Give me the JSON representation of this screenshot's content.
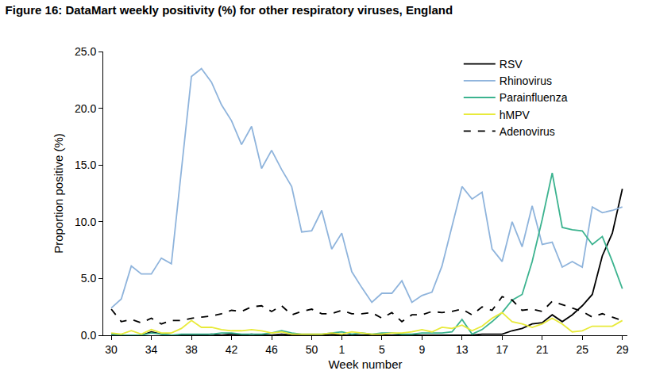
{
  "chart_data": {
    "type": "line",
    "title": "Figure 16: DataMart weekly positivity (%) for other respiratory viruses, England",
    "x_label": "Week number",
    "y_label": "Proportion positive (%)",
    "categories": [
      "30",
      null,
      null,
      null,
      "34",
      null,
      null,
      null,
      "38",
      null,
      null,
      null,
      "42",
      null,
      null,
      null,
      "46",
      null,
      null,
      null,
      "50",
      null,
      null,
      "1",
      null,
      null,
      null,
      "5",
      null,
      null,
      null,
      "9",
      null,
      null,
      null,
      "13",
      null,
      null,
      null,
      "17",
      null,
      null,
      null,
      "21",
      null,
      null,
      null,
      "25",
      null,
      null,
      null,
      "29"
    ],
    "ylim": [
      0,
      25
    ],
    "yticks": [
      {
        "value": 0,
        "label": "0.0"
      },
      {
        "value": 5,
        "label": "5.0"
      },
      {
        "value": 10,
        "label": "10.0"
      },
      {
        "value": 15,
        "label": "15.0"
      },
      {
        "value": 20,
        "label": "20.0"
      },
      {
        "value": 25,
        "label": "25.0"
      }
    ],
    "grid": false,
    "legend": "top right",
    "series": [
      {
        "name": "RSV",
        "color": "#000000",
        "line_style": "solid",
        "values": [
          0.1,
          0.0,
          0.0,
          0.0,
          0.3,
          0.1,
          0.0,
          0.0,
          0.0,
          0.0,
          0.1,
          0.0,
          0.1,
          0.0,
          0.1,
          0.0,
          0.0,
          0.1,
          0.0,
          0.0,
          0.0,
          0.0,
          0.1,
          0.0,
          0.0,
          0.0,
          0.0,
          0.0,
          0.0,
          0.0,
          0.0,
          0.0,
          0.0,
          0.0,
          0.0,
          0.0,
          0.0,
          0.1,
          0.1,
          0.1,
          0.4,
          0.6,
          1.0,
          1.1,
          1.8,
          1.2,
          1.8,
          2.6,
          3.6,
          7.0,
          9.0,
          12.9
        ]
      },
      {
        "name": "Rhinovirus",
        "color": "#8fb4dc",
        "line_style": "solid",
        "values": [
          2.4,
          3.2,
          6.1,
          5.4,
          5.4,
          6.8,
          6.3,
          14.5,
          22.8,
          23.5,
          22.3,
          20.3,
          18.9,
          16.8,
          18.4,
          14.7,
          16.3,
          14.6,
          13.1,
          9.1,
          9.2,
          11.0,
          7.6,
          9.0,
          5.6,
          4.2,
          2.9,
          3.7,
          3.7,
          4.8,
          2.9,
          3.5,
          3.8,
          6.1,
          9.5,
          13.1,
          12.0,
          12.6,
          7.6,
          6.5,
          10.0,
          7.8,
          11.4,
          8.0,
          8.2,
          6.0,
          6.5,
          6.0,
          11.3,
          10.8,
          11.0,
          11.3
        ]
      },
      {
        "name": "Parainfluenza",
        "color": "#3cb38f",
        "line_style": "solid",
        "values": [
          0.1,
          0.0,
          0.0,
          0.0,
          0.2,
          0.1,
          0.0,
          0.1,
          0.1,
          0.1,
          0.1,
          0.2,
          0.2,
          0.1,
          0.1,
          0.1,
          0.2,
          0.4,
          0.2,
          0.1,
          0.1,
          0.1,
          0.2,
          0.3,
          0.1,
          0.2,
          0.1,
          0.2,
          0.2,
          0.1,
          0.1,
          0.2,
          0.2,
          0.2,
          0.3,
          1.4,
          0.1,
          0.5,
          1.2,
          2.0,
          3.1,
          3.6,
          6.5,
          10.2,
          14.3,
          9.5,
          9.3,
          9.2,
          8.0,
          8.7,
          6.5,
          4.1
        ]
      },
      {
        "name": "hMPV",
        "color": "#e8ea3a",
        "line_style": "solid",
        "values": [
          0.2,
          0.1,
          0.4,
          0.1,
          0.5,
          0.2,
          0.2,
          0.6,
          1.3,
          0.7,
          0.7,
          0.5,
          0.4,
          0.4,
          0.5,
          0.4,
          0.2,
          0.3,
          0.1,
          0.1,
          0.1,
          0.1,
          0.2,
          0.1,
          0.3,
          0.2,
          0.1,
          0.1,
          0.2,
          0.2,
          0.3,
          0.5,
          0.3,
          0.7,
          0.6,
          0.9,
          0.4,
          0.8,
          1.5,
          2.0,
          1.2,
          1.0,
          0.7,
          1.0,
          1.5,
          1.0,
          0.3,
          0.4,
          0.8,
          0.8,
          0.8,
          1.3
        ]
      },
      {
        "name": "Adenovirus",
        "color": "#000000",
        "line_style": "dash",
        "values": [
          2.3,
          1.2,
          1.4,
          1.1,
          1.5,
          1.0,
          1.3,
          1.3,
          1.5,
          1.6,
          1.7,
          1.9,
          2.2,
          2.1,
          2.5,
          2.6,
          2.1,
          2.6,
          1.8,
          2.1,
          2.3,
          1.9,
          1.9,
          2.2,
          1.9,
          1.9,
          2.0,
          1.5,
          2.0,
          1.2,
          1.8,
          1.8,
          2.1,
          2.0,
          2.1,
          2.3,
          1.8,
          2.5,
          2.2,
          3.4,
          3.1,
          2.2,
          2.3,
          2.1,
          3.0,
          2.7,
          2.4,
          2.1,
          1.6,
          1.9,
          1.6,
          1.3
        ]
      }
    ]
  }
}
